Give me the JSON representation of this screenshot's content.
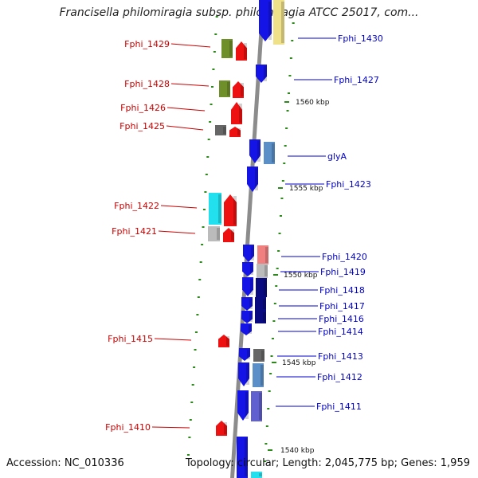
{
  "title": "Francisella philomiragia subsp. philomiragia ATCC 25017, com...",
  "footer": {
    "accession": "Accession: NC_010336",
    "summary": "Topology: circular; Length: 2,045,775 bp; Genes: 1,959"
  },
  "colors": {
    "backbone": "#8c8c8c",
    "tick": "#2b8a1a",
    "left_label": "#cc0000",
    "right_label": "#0000cc",
    "gene_blue": "#1414e6",
    "gene_navy": "#0a0a80",
    "gene_steel": "#5a8fc8",
    "gene_red": "#ee1111",
    "gene_olive": "#6f8f2a",
    "gene_cyan": "#22e0ee",
    "gene_gray": "#bbbbbb",
    "gene_darkgray": "#666666",
    "gene_yellow": "#efe08a",
    "gene_salmon": "#f08080",
    "gene_lavender": "#6060d0"
  },
  "kbp_markers": [
    "1560 kbp",
    "1555 kbp",
    "1550 kbp",
    "1545 kbp",
    "1540 kbp"
  ],
  "genes_left": [
    {
      "label": "Fphi_1429",
      "color": "gene_olive"
    },
    {
      "label": "Fphi_1428",
      "color": "gene_olive"
    },
    {
      "label": "Fphi_1426",
      "color": "gene_red"
    },
    {
      "label": "Fphi_1425",
      "color": "gene_red"
    },
    {
      "label": "Fphi_1422",
      "color": "gene_cyan"
    },
    {
      "label": "Fphi_1421",
      "color": "gene_gray"
    },
    {
      "label": "Fphi_1415",
      "color": "gene_red"
    },
    {
      "label": "Fphi_1410",
      "color": "gene_red"
    }
  ],
  "genes_right": [
    {
      "label": "Fphi_1430",
      "color": "gene_yellow"
    },
    {
      "label": "Fphi_1427",
      "color": "gene_blue"
    },
    {
      "label": "glyA",
      "color": "gene_steel"
    },
    {
      "label": "Fphi_1423",
      "color": "gene_blue"
    },
    {
      "label": "Fphi_1420",
      "color": "gene_salmon"
    },
    {
      "label": "Fphi_1419",
      "color": "gene_gray"
    },
    {
      "label": "Fphi_1418",
      "color": "gene_navy"
    },
    {
      "label": "Fphi_1417",
      "color": "gene_navy"
    },
    {
      "label": "Fphi_1416",
      "color": "gene_navy"
    },
    {
      "label": "Fphi_1414",
      "color": "gene_blue"
    },
    {
      "label": "Fphi_1413",
      "color": "gene_darkgray"
    },
    {
      "label": "Fphi_1412",
      "color": "gene_steel"
    },
    {
      "label": "Fphi_1411",
      "color": "gene_lavender"
    }
  ]
}
